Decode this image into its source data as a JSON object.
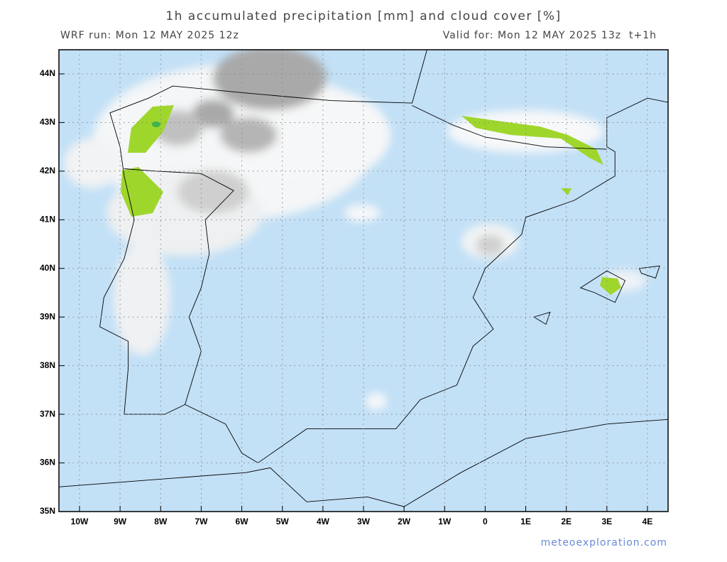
{
  "header": {
    "title": "1h accumulated precipitation [mm] and cloud cover [%]",
    "run": "WRF run: Mon 12 MAY 2025 12z",
    "valid": "Valid for: Mon 12 MAY 2025 13z  t+1h"
  },
  "axes": {
    "lat_labels": [
      "44N",
      "43N",
      "42N",
      "41N",
      "40N",
      "39N",
      "38N",
      "37N",
      "36N",
      "35N"
    ],
    "lon_labels": [
      "10W",
      "9W",
      "8W",
      "7W",
      "6W",
      "5W",
      "4W",
      "3W",
      "2W",
      "1W",
      "0",
      "1E",
      "2E",
      "3E",
      "4E"
    ]
  },
  "footer": {
    "credit": "meteoexploration.com"
  }
}
